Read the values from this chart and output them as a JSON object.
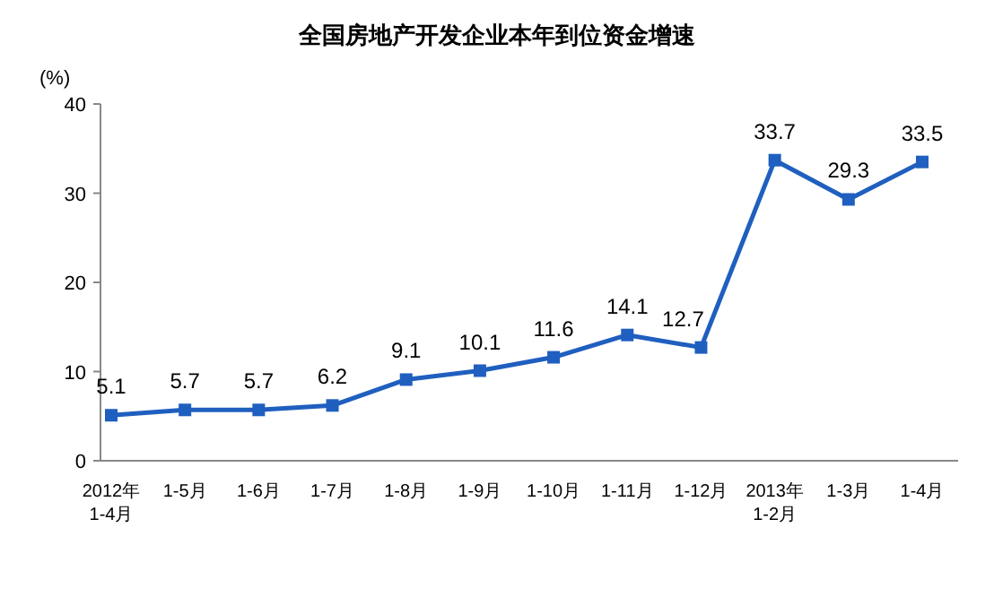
{
  "chart_data": {
    "type": "line",
    "title": "全国房地产开发企业本年到位资金增速",
    "ylabel": "(%)",
    "categories": [
      "2012年\n1-4月",
      "1-5月",
      "1-6月",
      "1-7月",
      "1-8月",
      "1-9月",
      "1-10月",
      "1-11月",
      "1-12月",
      "2013年\n1-2月",
      "1-3月",
      "1-4月"
    ],
    "series": [
      {
        "color": "#1f5fbf",
        "values": [
          5.1,
          5.7,
          5.7,
          6.2,
          9.1,
          10.1,
          11.6,
          14.1,
          12.7,
          33.7,
          29.3,
          33.5
        ]
      }
    ],
    "ylim": [
      0,
      40
    ],
    "yticks": [
      0,
      10,
      20,
      30,
      40
    ],
    "marker": "square",
    "line_style": "solid",
    "data_labels": true,
    "grid": false
  }
}
